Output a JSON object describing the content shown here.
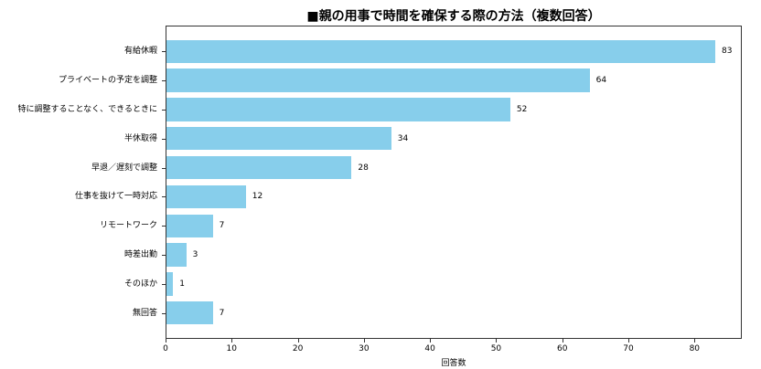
{
  "chart_data": {
    "type": "bar",
    "orientation": "horizontal",
    "title": "■親の用事で時間を確保する際の方法（複数回答）",
    "xlabel": "回答数",
    "ylabel": "",
    "categories": [
      "有給休暇",
      "プライベートの予定を調整",
      "特に調整することなく、できるときに",
      "半休取得",
      "早退／遅刻で調整",
      "仕事を抜けて一時対応",
      "リモートワーク",
      "時差出勤",
      "そのほか",
      "無回答"
    ],
    "values": [
      83,
      64,
      52,
      34,
      28,
      12,
      7,
      3,
      1,
      7
    ],
    "xlim": [
      0,
      87.15
    ],
    "xticks": [
      0,
      10,
      20,
      30,
      40,
      50,
      60,
      70,
      80
    ],
    "bar_color": "#87CEEB",
    "grid": false,
    "legend": null,
    "data_labels": true
  }
}
